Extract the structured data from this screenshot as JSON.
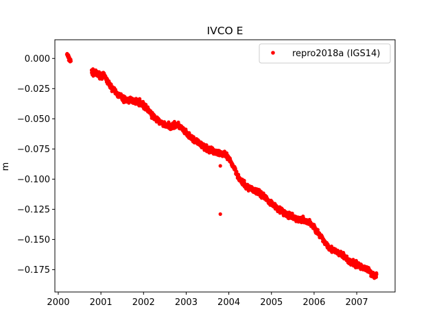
{
  "chart_data": {
    "type": "scatter",
    "title": "IVCO E",
    "xlabel": "",
    "ylabel": "m",
    "xlim": [
      1999.92,
      2007.9
    ],
    "ylim": [
      -0.1935,
      0.0155
    ],
    "xticks": [
      2000,
      2001,
      2002,
      2003,
      2004,
      2005,
      2006,
      2007
    ],
    "xtick_labels": [
      "2000",
      "2001",
      "2002",
      "2003",
      "2004",
      "2005",
      "2006",
      "2007"
    ],
    "yticks": [
      0.0,
      -0.025,
      -0.05,
      -0.075,
      -0.1,
      -0.125,
      -0.15,
      -0.175
    ],
    "ytick_labels": [
      "0.000",
      "−0.025",
      "−0.050",
      "−0.075",
      "−0.100",
      "−0.125",
      "−0.150",
      "−0.175"
    ],
    "grid": false,
    "legend": {
      "position": "top-right",
      "entries": [
        "repro2018a (IGS14)"
      ]
    },
    "marker_color": "#ff0000",
    "series": [
      {
        "name": "repro2018a (IGS14)",
        "trend_points": [
          [
            2000.2,
            0.004
          ],
          [
            2000.23,
            0.001
          ],
          [
            2000.27,
            -0.001
          ],
          [
            2000.3,
            -0.003
          ],
          [
            2000.78,
            -0.011
          ],
          [
            2000.9,
            -0.013
          ],
          [
            2001.0,
            -0.014
          ],
          [
            2001.1,
            -0.015
          ],
          [
            2001.15,
            -0.019
          ],
          [
            2001.25,
            -0.024
          ],
          [
            2001.4,
            -0.03
          ],
          [
            2001.55,
            -0.034
          ],
          [
            2001.7,
            -0.035
          ],
          [
            2001.8,
            -0.035
          ],
          [
            2001.9,
            -0.036
          ],
          [
            2002.0,
            -0.039
          ],
          [
            2002.1,
            -0.042
          ],
          [
            2002.2,
            -0.047
          ],
          [
            2002.35,
            -0.052
          ],
          [
            2002.5,
            -0.055
          ],
          [
            2002.65,
            -0.056
          ],
          [
            2002.8,
            -0.055
          ],
          [
            2002.9,
            -0.058
          ],
          [
            2003.05,
            -0.064
          ],
          [
            2003.25,
            -0.069
          ],
          [
            2003.4,
            -0.073
          ],
          [
            2003.55,
            -0.076
          ],
          [
            2003.7,
            -0.077
          ],
          [
            2003.85,
            -0.079
          ],
          [
            2003.95,
            -0.081
          ],
          [
            2004.05,
            -0.086
          ],
          [
            2004.15,
            -0.092
          ],
          [
            2004.25,
            -0.1
          ],
          [
            2004.4,
            -0.106
          ],
          [
            2004.55,
            -0.108
          ],
          [
            2004.7,
            -0.111
          ],
          [
            2004.85,
            -0.115
          ],
          [
            2005.0,
            -0.12
          ],
          [
            2005.15,
            -0.124
          ],
          [
            2005.3,
            -0.128
          ],
          [
            2005.45,
            -0.131
          ],
          [
            2005.6,
            -0.133
          ],
          [
            2005.75,
            -0.134
          ],
          [
            2005.9,
            -0.136
          ],
          [
            2006.0,
            -0.14
          ],
          [
            2006.1,
            -0.145
          ],
          [
            2006.25,
            -0.152
          ],
          [
            2006.4,
            -0.158
          ],
          [
            2006.55,
            -0.161
          ],
          [
            2006.7,
            -0.164
          ],
          [
            2006.85,
            -0.169
          ],
          [
            2007.0,
            -0.171
          ],
          [
            2007.15,
            -0.173
          ],
          [
            2007.3,
            -0.176
          ],
          [
            2007.4,
            -0.18
          ],
          [
            2007.47,
            -0.18
          ]
        ],
        "outliers": [
          [
            2003.8,
            -0.089
          ],
          [
            2003.8,
            -0.129
          ]
        ]
      }
    ]
  }
}
